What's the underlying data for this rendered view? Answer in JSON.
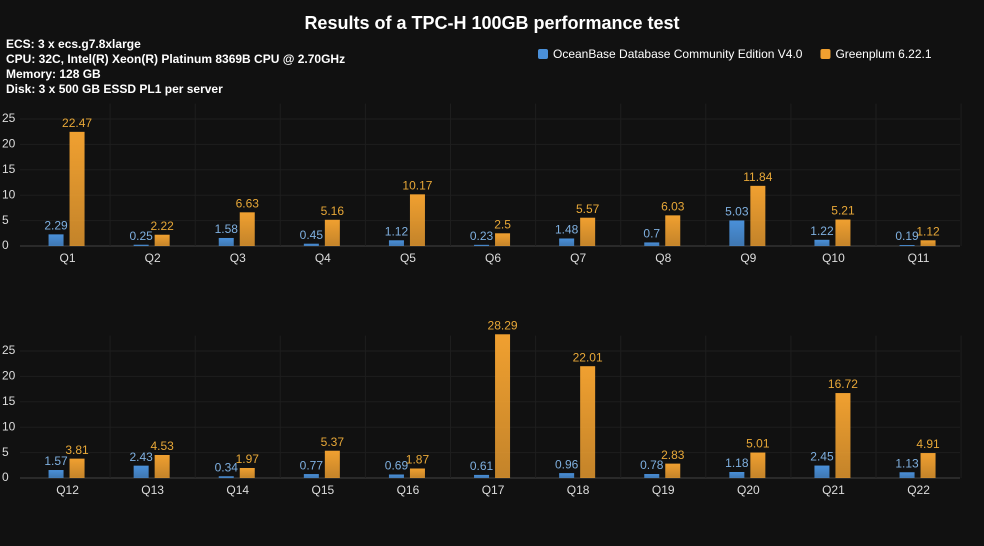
{
  "title": "Results of a TPC-H 100GB performance test",
  "notes": [
    "ECS:  3 x ecs.g7.8xlarge",
    "CPU:  32C, Intel(R) Xeon(R) Platinum 8369B CPU @ 2.70GHz",
    "Memory: 128 GB",
    "Disk: 3 x 500 GB ESSD PL1 per server"
  ],
  "legend_position": "top-right",
  "chart_data": [
    {
      "type": "bar",
      "categories": [
        "Q1",
        "Q2",
        "Q3",
        "Q4",
        "Q5",
        "Q6",
        "Q7",
        "Q8",
        "Q9",
        "Q10",
        "Q11"
      ],
      "series": [
        {
          "name": "OceanBase Database Community Edition V4.0",
          "color": "#4a90d9",
          "values": [
            2.29,
            0.25,
            1.58,
            0.45,
            1.12,
            0.23,
            1.48,
            0.7,
            5.03,
            1.22,
            0.19
          ]
        },
        {
          "name": "Greenplum 6.22.1",
          "color": "#f0a030",
          "values": [
            22.47,
            2.22,
            6.63,
            5.16,
            10.17,
            2.5,
            5.57,
            6.03,
            11.84,
            5.21,
            1.12
          ]
        }
      ],
      "ylim": [
        0,
        30
      ],
      "yticks": [
        0,
        5,
        10,
        15,
        20,
        25
      ],
      "grid": true
    },
    {
      "type": "bar",
      "categories": [
        "Q12",
        "Q13",
        "Q14",
        "Q15",
        "Q16",
        "Q17",
        "Q18",
        "Q19",
        "Q20",
        "Q21",
        "Q22"
      ],
      "series": [
        {
          "color": "#4a90d9",
          "values": [
            1.57,
            2.43,
            0.34,
            0.77,
            0.69,
            0.61,
            0.96,
            0.78,
            1.18,
            2.45,
            1.13
          ]
        },
        {
          "color": "#f0a030",
          "values": [
            3.81,
            4.53,
            1.97,
            5.37,
            1.87,
            28.29,
            22.01,
            2.83,
            5.01,
            16.72,
            4.91
          ]
        }
      ],
      "ylim": [
        0,
        30
      ],
      "yticks": [
        0,
        5,
        10,
        15,
        20,
        25
      ],
      "grid": true
    }
  ]
}
